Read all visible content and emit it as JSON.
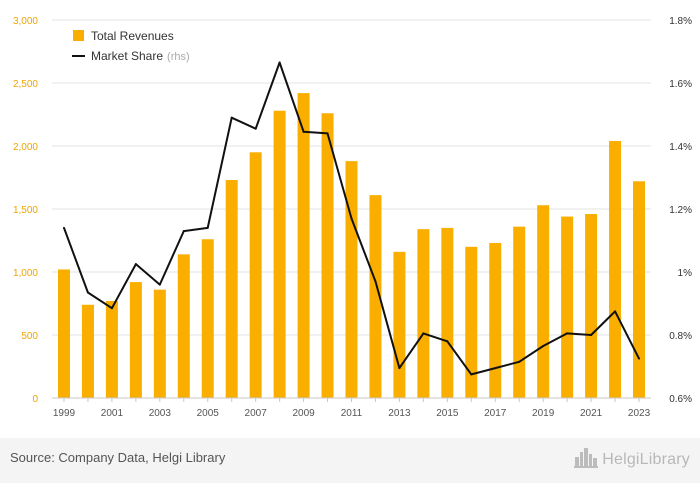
{
  "colors": {
    "bar": "#f9ae00",
    "line": "#111111",
    "axis_left": "#f0a400",
    "axis_right": "#333333",
    "grid": "#e3e3e3"
  },
  "chart_data": {
    "type": "bar",
    "x_tick_labels": [
      "1999",
      "2001",
      "2003",
      "2005",
      "2007",
      "2009",
      "2011",
      "2013",
      "2015",
      "2017",
      "2019",
      "2021",
      "2023"
    ],
    "categories": [
      "1999",
      "2000",
      "2001",
      "2002",
      "2003",
      "2004",
      "2005",
      "2006",
      "2007",
      "2008",
      "2009",
      "2010",
      "2011",
      "2012",
      "2013",
      "2014",
      "2015",
      "2016",
      "2017",
      "2018",
      "2019",
      "2020",
      "2021",
      "2022",
      "2023"
    ],
    "series": [
      {
        "name": "Total Revenues",
        "type": "bar",
        "axis": "left",
        "values": [
          1020,
          740,
          770,
          920,
          860,
          1140,
          1260,
          1730,
          1950,
          2280,
          2420,
          2260,
          1880,
          1610,
          1160,
          1340,
          1350,
          1200,
          1230,
          1360,
          1530,
          1440,
          1460,
          2040,
          1720
        ]
      },
      {
        "name": "Market Share",
        "type": "line",
        "axis": "right",
        "unit": "%",
        "values": [
          1.14,
          0.935,
          0.885,
          1.025,
          0.96,
          1.13,
          1.14,
          1.49,
          1.455,
          1.665,
          1.445,
          1.44,
          1.17,
          0.97,
          0.695,
          0.805,
          0.78,
          0.675,
          0.695,
          0.715,
          0.765,
          0.805,
          0.8,
          0.875,
          0.725
        ]
      }
    ],
    "y_left": {
      "min": 0,
      "max": 3000,
      "ticks": [
        0,
        500,
        1000,
        1500,
        2000,
        2500,
        3000
      ],
      "tick_labels": [
        "0",
        "500",
        "1,000",
        "1,500",
        "2,000",
        "2,500",
        "3,000"
      ]
    },
    "y_right": {
      "min": 0.6,
      "max": 1.8,
      "ticks": [
        0.6,
        0.8,
        1.0,
        1.2,
        1.4,
        1.6,
        1.8
      ],
      "tick_labels": [
        "0.6%",
        "0.8%",
        "1%",
        "1.2%",
        "1.4%",
        "1.6%",
        "1.8%"
      ]
    },
    "grid": true,
    "legend": {
      "position": "top-left",
      "items": [
        {
          "label": "Total Revenues",
          "marker": "square"
        },
        {
          "label": "Market Share",
          "marker": "line",
          "suffix": "(rhs)"
        }
      ]
    }
  },
  "footer": {
    "source": "Source: Company Data, Helgi Library",
    "brand": "HelgiLibrary",
    "brand_icon": "city-skyline-icon"
  }
}
